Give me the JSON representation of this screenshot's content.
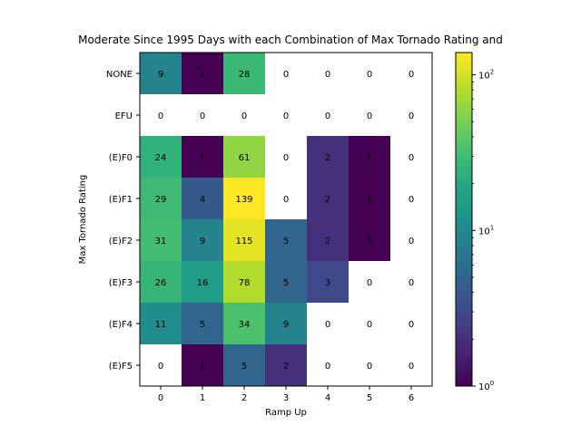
{
  "chart_data": {
    "type": "heatmap",
    "title": "Moderate Since 1995 Days with each Combination of Max Tornado Rating and",
    "xlabel": "Ramp Up",
    "ylabel": "Max Tornado Rating",
    "x_categories": [
      "0",
      "1",
      "2",
      "3",
      "4",
      "5",
      "6"
    ],
    "y_categories": [
      "NONE",
      "EFU",
      "(E)F0",
      "(E)F1",
      "(E)F2",
      "(E)F3",
      "(E)F4",
      "(E)F5"
    ],
    "values": [
      [
        9,
        1,
        28,
        0,
        0,
        0,
        0
      ],
      [
        0,
        0,
        0,
        0,
        0,
        0,
        0
      ],
      [
        24,
        1,
        61,
        0,
        2,
        1,
        0
      ],
      [
        29,
        4,
        139,
        0,
        2,
        1,
        0
      ],
      [
        31,
        9,
        115,
        5,
        2,
        1,
        0
      ],
      [
        26,
        16,
        78,
        5,
        3,
        0,
        0
      ],
      [
        11,
        5,
        34,
        9,
        0,
        0,
        0
      ],
      [
        0,
        1,
        5,
        2,
        0,
        0,
        0
      ]
    ],
    "colorbar": {
      "scale": "log",
      "range": [
        1,
        139
      ],
      "colormap": "viridis",
      "tick_labels": [
        "10^0",
        "10^1",
        "10^2"
      ],
      "zero_color": "#ffffff"
    }
  }
}
